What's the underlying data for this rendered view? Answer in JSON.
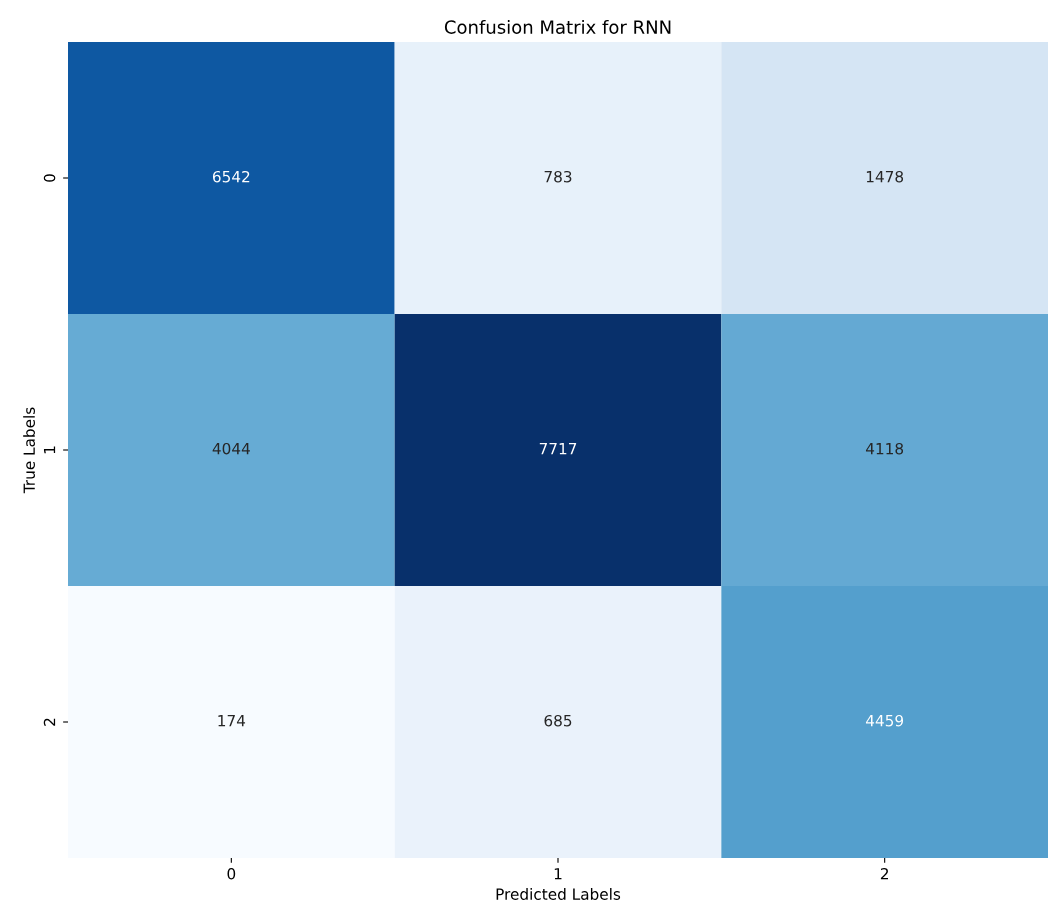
{
  "chart_data": {
    "type": "heatmap",
    "title": "Confusion Matrix for RNN",
    "xlabel": "Predicted Labels",
    "ylabel": "True Labels",
    "categories": [
      "0",
      "1",
      "2"
    ],
    "y_categories": [
      "0",
      "1",
      "2"
    ],
    "cells": [
      [
        6542,
        783,
        1478
      ],
      [
        4044,
        7717,
        4118
      ],
      [
        174,
        685,
        4459
      ]
    ],
    "data_labels": true
  }
}
